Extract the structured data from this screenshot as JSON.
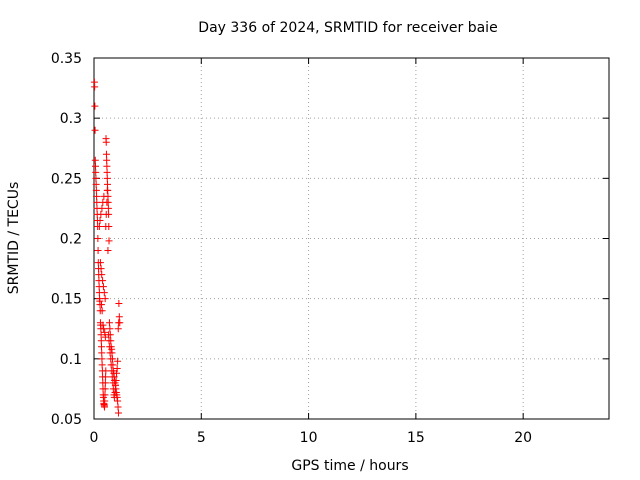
{
  "chart_data": {
    "type": "scatter",
    "title": "Day 336 of 2024, SRMTID for receiver baie",
    "xlabel": "GPS time / hours",
    "ylabel": "SRMTID / TECUs",
    "xlim": [
      0,
      24
    ],
    "ylim": [
      0.05,
      0.35
    ],
    "xticks": [
      0,
      5,
      10,
      15,
      20
    ],
    "xtick_labels": [
      "0",
      "5",
      "10",
      "15",
      "20"
    ],
    "yticks": [
      0.05,
      0.1,
      0.15,
      0.2,
      0.25,
      0.3,
      0.35
    ],
    "ytick_labels": [
      "0.05",
      "0.1",
      "0.15",
      "0.2",
      "0.25",
      "0.3",
      "0.35"
    ],
    "grid": true,
    "marker": "plus",
    "color": "#ff0000",
    "series": [
      {
        "x": [
          0.02,
          0.03,
          0.04,
          0.05,
          0.06,
          0.07,
          0.08,
          0.09,
          0.1,
          0.11,
          0.12,
          0.13,
          0.14,
          0.15,
          0.16,
          0.17,
          0.18,
          0.19,
          0.2,
          0.21,
          0.22,
          0.23,
          0.24,
          0.25,
          0.26,
          0.27,
          0.28,
          0.29,
          0.3,
          0.31,
          0.32,
          0.33,
          0.34,
          0.35,
          0.36,
          0.37,
          0.38,
          0.39,
          0.4,
          0.41,
          0.42,
          0.43,
          0.44,
          0.45,
          0.46,
          0.47,
          0.48,
          0.49,
          0.5,
          0.51,
          0.52,
          0.53,
          0.54,
          0.55,
          0.56,
          0.57,
          0.58,
          0.59,
          0.6,
          0.61,
          0.62,
          0.63,
          0.64,
          0.65,
          0.66,
          0.67,
          0.68,
          0.69,
          0.7,
          0.72,
          0.74,
          0.76,
          0.78,
          0.8,
          0.82,
          0.84,
          0.86,
          0.88,
          0.9,
          0.92,
          0.94,
          0.96,
          0.98,
          1.0,
          1.02,
          1.04,
          1.06,
          1.08,
          1.1,
          1.12,
          1.14,
          1.16,
          1.18,
          1.2,
          0.55,
          0.57,
          0.6,
          0.62,
          0.65,
          0.68,
          0.7,
          0.73,
          0.75,
          0.78,
          0.8,
          0.83,
          0.85,
          0.88,
          0.9,
          0.93,
          0.95,
          0.98,
          1.0,
          1.03,
          1.05,
          1.08,
          1.1,
          1.13,
          1.15,
          0.3,
          0.33,
          0.36,
          0.4,
          0.44,
          0.48,
          0.52,
          0.35,
          0.38,
          0.42,
          0.45,
          0.5,
          0.53,
          0.25,
          0.28,
          0.32,
          0.37,
          0.41,
          0.46
        ],
        "y": [
          0.33,
          0.326,
          0.31,
          0.29,
          0.265,
          0.26,
          0.255,
          0.25,
          0.245,
          0.24,
          0.235,
          0.23,
          0.225,
          0.22,
          0.215,
          0.21,
          0.2,
          0.19,
          0.18,
          0.175,
          0.17,
          0.165,
          0.16,
          0.155,
          0.15,
          0.148,
          0.145,
          0.14,
          0.13,
          0.128,
          0.125,
          0.12,
          0.115,
          0.11,
          0.105,
          0.1,
          0.095,
          0.09,
          0.085,
          0.08,
          0.075,
          0.07,
          0.068,
          0.065,
          0.063,
          0.062,
          0.061,
          0.06,
          0.065,
          0.07,
          0.075,
          0.08,
          0.085,
          0.09,
          0.283,
          0.28,
          0.27,
          0.265,
          0.26,
          0.255,
          0.25,
          0.245,
          0.24,
          0.235,
          0.23,
          0.225,
          0.22,
          0.21,
          0.198,
          0.13,
          0.125,
          0.12,
          0.115,
          0.11,
          0.108,
          0.105,
          0.1,
          0.095,
          0.09,
          0.088,
          0.085,
          0.082,
          0.08,
          0.078,
          0.075,
          0.072,
          0.07,
          0.068,
          0.065,
          0.06,
          0.055,
          0.146,
          0.135,
          0.13,
          0.21,
          0.22,
          0.23,
          0.24,
          0.19,
          0.12,
          0.115,
          0.11,
          0.105,
          0.1,
          0.095,
          0.09,
          0.085,
          0.08,
          0.075,
          0.07,
          0.068,
          0.072,
          0.078,
          0.082,
          0.088,
          0.092,
          0.098,
          0.125,
          0.13,
          0.18,
          0.175,
          0.17,
          0.165,
          0.16,
          0.155,
          0.15,
          0.145,
          0.14,
          0.128,
          0.125,
          0.122,
          0.118,
          0.21,
          0.215,
          0.22,
          0.225,
          0.23,
          0.235
        ]
      }
    ]
  }
}
